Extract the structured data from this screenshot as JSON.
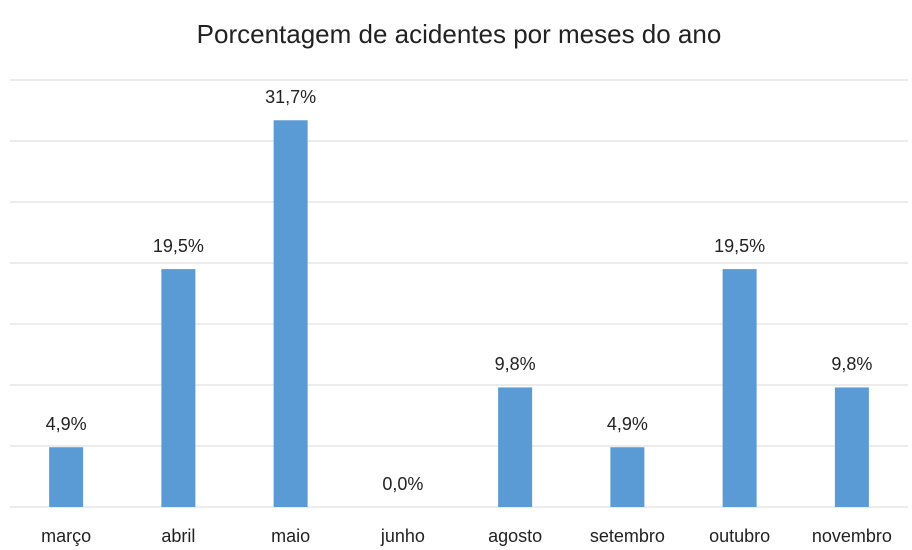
{
  "chart_data": {
    "type": "bar",
    "title": "Porcentagem de acidentes por meses do ano",
    "categories": [
      "março",
      "abril",
      "maio",
      "junho",
      "agosto",
      "setembro",
      "outubro",
      "novembro"
    ],
    "values": [
      4.9,
      19.5,
      31.7,
      0.0,
      9.8,
      4.9,
      19.5,
      9.8
    ],
    "value_labels": [
      "4,9%",
      "19,5%",
      "31,7%",
      "0,0%",
      "9,8%",
      "4,9%",
      "19,5%",
      "9,8%"
    ],
    "color": "#5b9bd5",
    "ylim": [
      0,
      35
    ],
    "yticks": [
      0,
      5,
      10,
      15,
      20,
      25,
      30,
      35
    ],
    "grid": true
  }
}
